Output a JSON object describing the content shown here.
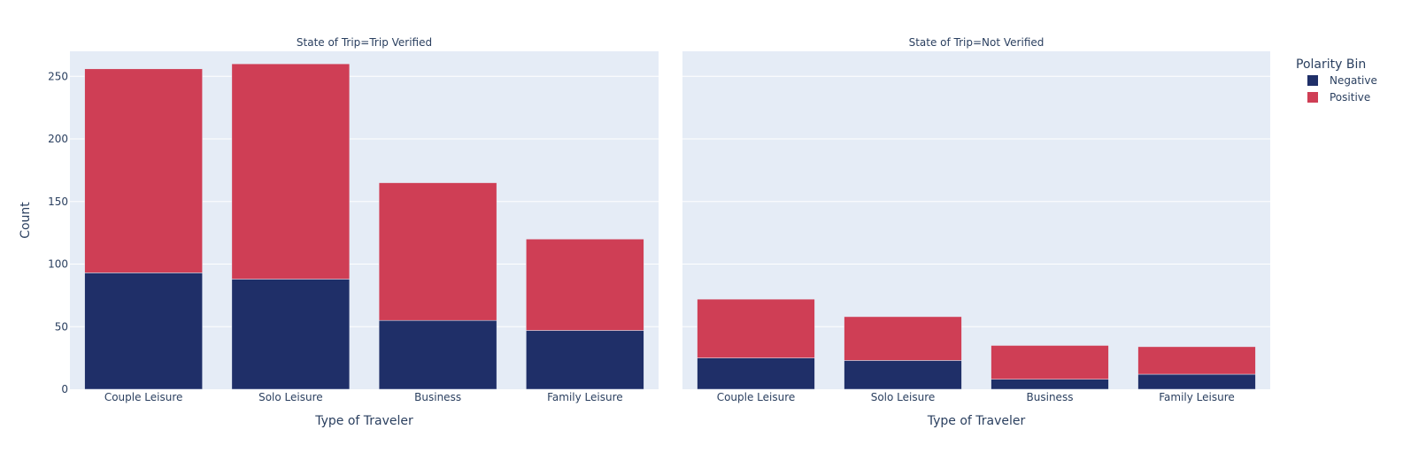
{
  "chart_data": {
    "type": "bar",
    "barmode": "stack",
    "legend": {
      "title": "Polarity Bin",
      "placement": "top-right",
      "entries": [
        {
          "name": "Negative",
          "color": "#1f2f68"
        },
        {
          "name": "Positive",
          "color": "#cf3e55"
        }
      ]
    },
    "ylabel": "Count",
    "ylim": [
      0,
      270
    ],
    "yticks": [
      0,
      50,
      100,
      150,
      200,
      250
    ],
    "grid": true,
    "plot_background": "#e5ecf6",
    "categories": [
      "Couple Leisure",
      "Solo Leisure",
      "Business",
      "Family Leisure"
    ],
    "facets": [
      {
        "title": "State of Trip=Trip Verified",
        "xlabel": "Type of Traveler",
        "series": [
          {
            "name": "Negative",
            "values": [
              93,
              88,
              55,
              47
            ]
          },
          {
            "name": "Positive",
            "values": [
              163,
              172,
              110,
              73
            ]
          }
        ]
      },
      {
        "title": "State of Trip=Not Verified",
        "xlabel": "Type of Traveler",
        "series": [
          {
            "name": "Negative",
            "values": [
              25,
              23,
              8,
              12
            ]
          },
          {
            "name": "Positive",
            "values": [
              47,
              35,
              27,
              22
            ]
          }
        ]
      }
    ]
  }
}
